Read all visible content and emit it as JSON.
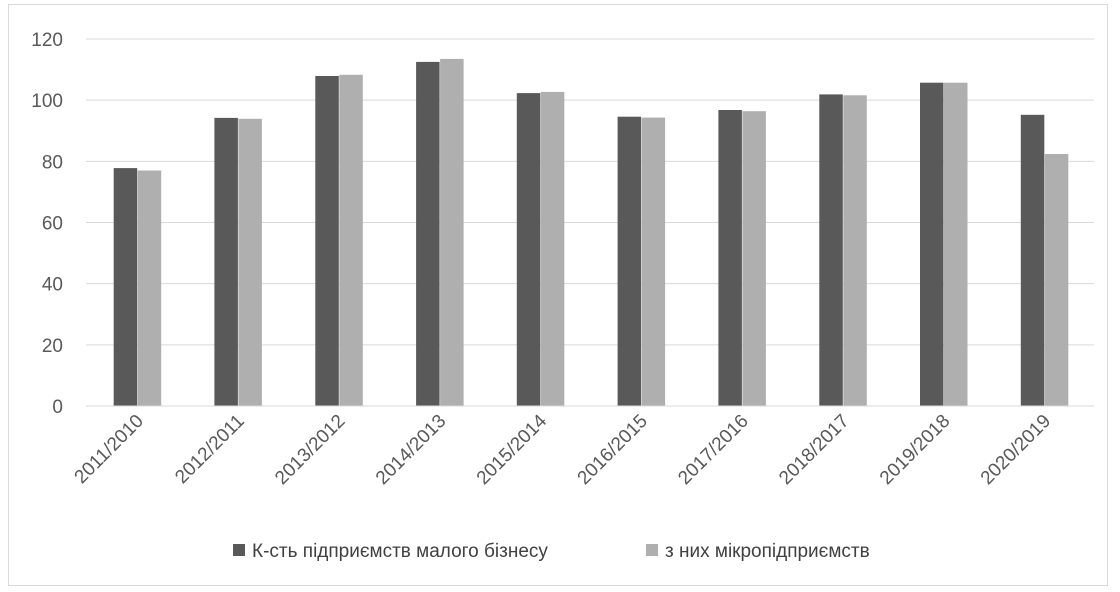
{
  "chart_data": {
    "type": "bar",
    "title": "",
    "xlabel": "",
    "ylabel": "",
    "categories": [
      "2011/2010",
      "2012/2011",
      "2013/2012",
      "2014/2013",
      "2015/2014",
      "2016/2015",
      "2017/2016",
      "2018/2017",
      "2019/2018",
      "2020/2019"
    ],
    "series": [
      {
        "name": "К-сть підприємств малого бізнесу",
        "color": "#595959",
        "values": [
          77.8,
          94.2,
          107.9,
          112.5,
          102.3,
          94.6,
          96.8,
          101.9,
          105.7,
          95.2
        ]
      },
      {
        "name": "з них мікропідприємств",
        "color": "#afafaf",
        "values": [
          77.0,
          93.9,
          108.3,
          113.5,
          102.7,
          94.3,
          96.4,
          101.6,
          105.7,
          82.4
        ]
      }
    ],
    "ylim": [
      0,
      120
    ],
    "yticks": [
      "0",
      "20",
      "40",
      "60",
      "80",
      "100",
      "120"
    ],
    "grid": true,
    "gridline_color": "#d9d9d9",
    "legend_position": "bottom"
  }
}
